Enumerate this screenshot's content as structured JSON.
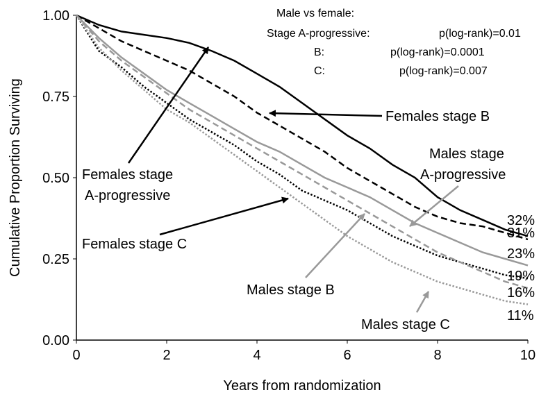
{
  "chart_data": {
    "type": "line",
    "x_label": "Years from randomization",
    "y_label": "Cumulative Proportion Surviving",
    "xlim": [
      0,
      10
    ],
    "ylim": [
      0,
      1
    ],
    "xticks": [
      0,
      2,
      4,
      6,
      8,
      10
    ],
    "yticks": [
      {
        "value": 0,
        "label": "0.00"
      },
      {
        "value": 0.25,
        "label": "0.25"
      },
      {
        "value": 0.5,
        "label": "0.50"
      },
      {
        "value": 0.75,
        "label": "0.75"
      },
      {
        "value": 1,
        "label": "1.00"
      }
    ],
    "x": [
      0,
      0.5,
      1,
      1.5,
      2,
      2.5,
      3,
      3.5,
      4,
      4.5,
      5,
      5.5,
      6,
      6.5,
      7,
      7.5,
      8,
      8.5,
      9,
      9.5,
      10
    ],
    "series": [
      {
        "color": "#000000",
        "style": "solid",
        "values": [
          1.0,
          0.97,
          0.95,
          0.94,
          0.93,
          0.915,
          0.89,
          0.86,
          0.82,
          0.78,
          0.73,
          0.68,
          0.63,
          0.59,
          0.54,
          0.5,
          0.44,
          0.4,
          0.37,
          0.34,
          0.32
        ]
      },
      {
        "color": "#000000",
        "style": "dashed",
        "values": [
          1.0,
          0.96,
          0.92,
          0.89,
          0.86,
          0.83,
          0.79,
          0.75,
          0.7,
          0.66,
          0.62,
          0.58,
          0.53,
          0.49,
          0.45,
          0.41,
          0.38,
          0.36,
          0.35,
          0.33,
          0.31
        ]
      },
      {
        "color": "#999999",
        "style": "solid",
        "values": [
          1.0,
          0.93,
          0.87,
          0.82,
          0.77,
          0.73,
          0.69,
          0.65,
          0.61,
          0.58,
          0.54,
          0.5,
          0.47,
          0.44,
          0.4,
          0.36,
          0.33,
          0.3,
          0.27,
          0.25,
          0.23
        ]
      },
      {
        "color": "#000000",
        "style": "dotted",
        "values": [
          1.0,
          0.89,
          0.84,
          0.78,
          0.73,
          0.68,
          0.64,
          0.6,
          0.55,
          0.51,
          0.46,
          0.43,
          0.4,
          0.36,
          0.32,
          0.29,
          0.26,
          0.24,
          0.22,
          0.2,
          0.19
        ]
      },
      {
        "color": "#999999",
        "style": "dashed",
        "values": [
          1.0,
          0.92,
          0.86,
          0.81,
          0.76,
          0.71,
          0.67,
          0.63,
          0.59,
          0.55,
          0.51,
          0.47,
          0.43,
          0.39,
          0.35,
          0.31,
          0.27,
          0.24,
          0.21,
          0.18,
          0.16
        ]
      },
      {
        "color": "#999999",
        "style": "dotted",
        "values": [
          1.0,
          0.9,
          0.83,
          0.77,
          0.71,
          0.67,
          0.62,
          0.57,
          0.52,
          0.47,
          0.42,
          0.37,
          0.32,
          0.28,
          0.24,
          0.21,
          0.18,
          0.16,
          0.14,
          0.12,
          0.11
        ]
      }
    ],
    "stats": {
      "header": "Male vs female:",
      "rows": [
        [
          "Stage A-progressive:",
          "p(log-rank)=0.01"
        ],
        [
          "B:",
          "p(log-rank)=0.0001"
        ],
        [
          "C:",
          "p(log-rank)=0.007"
        ]
      ]
    },
    "annotations": [
      {
        "lines": [
          "Females stage B"
        ],
        "color": "#000000"
      },
      {
        "lines": [
          "Females stage",
          "A-progressive"
        ],
        "color": "#000000"
      },
      {
        "lines": [
          "Males stage",
          "A-progressive"
        ],
        "color": "#999999"
      },
      {
        "lines": [
          "Females stage C"
        ],
        "color": "#000000"
      },
      {
        "lines": [
          "Males stage B"
        ],
        "color": "#999999"
      },
      {
        "lines": [
          "Males stage C"
        ],
        "color": "#999999"
      }
    ],
    "end_labels": [
      "32%",
      "31%",
      "23%",
      "19%",
      "16%",
      "11%"
    ]
  }
}
